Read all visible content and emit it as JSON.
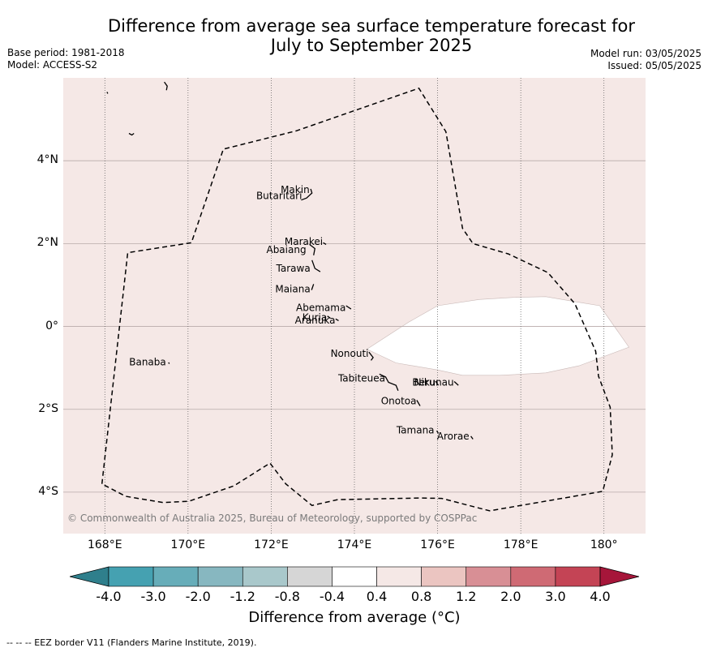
{
  "title_line1": "Difference from average sea surface temperature forecast for",
  "title_line2": "July to September 2025",
  "base_period": "Base period: 1981-2018",
  "model": "Model: ACCESS-S2",
  "model_run": "Model run: 03/05/2025",
  "issued": "Issued: 05/05/2025",
  "copyright": "© Commonwealth of Australia 2025, Bureau of Meteorology, supported by COSPPac",
  "footnote": "--  --  -- EEZ border V11 (Flanders Marine Institute, 2019).",
  "colorbar_label": "Difference from average (°C)",
  "colorbar_ticks": [
    "-4.0",
    "-3.0",
    "-2.0",
    "-1.2",
    "-0.8",
    "-0.4",
    "0.4",
    "0.8",
    "1.2",
    "2.0",
    "3.0",
    "4.0"
  ],
  "colorbar_colors": [
    "#2f7f8c",
    "#45a1b1",
    "#67adb9",
    "#87b7c0",
    "#a9c8cb",
    "#d6d6d6",
    "#ffffff",
    "#f5e8e6",
    "#ebc5c1",
    "#d88f95",
    "#cf6a74",
    "#c44455",
    "#a6163a"
  ],
  "map": {
    "background_color": "#f5e8e6",
    "lon_range": [
      167,
      181
    ],
    "lat_range": [
      -5,
      6
    ],
    "lon_ticks": [
      {
        "value": 168,
        "label": "168°E"
      },
      {
        "value": 170,
        "label": "170°E"
      },
      {
        "value": 172,
        "label": "172°E"
      },
      {
        "value": 174,
        "label": "174°E"
      },
      {
        "value": 176,
        "label": "176°E"
      },
      {
        "value": 178,
        "label": "178°E"
      },
      {
        "value": 180,
        "label": "180°"
      }
    ],
    "lat_ticks": [
      {
        "value": 4,
        "label": "4°N"
      },
      {
        "value": 2,
        "label": "2°N"
      },
      {
        "value": 0,
        "label": "0°"
      },
      {
        "value": -2,
        "label": "2°S"
      },
      {
        "value": -4,
        "label": "4°S"
      }
    ],
    "anomaly_regions": [
      {
        "category": "-0.4 to 0.4",
        "color": "#ffffff",
        "outline": [
          [
            174.3,
            -0.55
          ],
          [
            175.3,
            0.1
          ],
          [
            176,
            0.5
          ],
          [
            177,
            0.65
          ],
          [
            177.8,
            0.7
          ],
          [
            178.6,
            0.72
          ],
          [
            179.3,
            0.6
          ],
          [
            179.9,
            0.5
          ],
          [
            180.6,
            -0.5
          ],
          [
            179.4,
            -0.95
          ],
          [
            178.6,
            -1.12
          ],
          [
            177.5,
            -1.18
          ],
          [
            176.6,
            -1.18
          ],
          [
            176,
            -1.05
          ],
          [
            175,
            -0.88
          ]
        ]
      }
    ],
    "eez_border": [
      [
        167.93,
        -3.8
      ],
      [
        168.55,
        1.78
      ],
      [
        170.08,
        2.02
      ],
      [
        170.85,
        4.28
      ],
      [
        172.6,
        4.72
      ],
      [
        175.55,
        5.75
      ],
      [
        176.2,
        4.7
      ],
      [
        176.6,
        2.37
      ],
      [
        176.85,
        2.0
      ],
      [
        177.7,
        1.75
      ],
      [
        178.65,
        1.3
      ],
      [
        179.3,
        0.55
      ],
      [
        179.8,
        -0.6
      ],
      [
        179.87,
        -1.2
      ],
      [
        180.15,
        -1.95
      ],
      [
        180.2,
        -3.1
      ],
      [
        179.97,
        -3.98
      ],
      [
        177.25,
        -4.45
      ],
      [
        176.1,
        -4.15
      ],
      [
        175.6,
        -4.14
      ],
      [
        173.6,
        -4.18
      ],
      [
        172.98,
        -4.32
      ],
      [
        172.35,
        -3.8
      ],
      [
        171.97,
        -3.3
      ],
      [
        171.1,
        -3.85
      ],
      [
        170.02,
        -4.22
      ],
      [
        169.4,
        -4.25
      ],
      [
        168.5,
        -4.1
      ],
      [
        167.93,
        -3.8
      ]
    ],
    "places": [
      {
        "name": "Makin",
        "lon": 172.98,
        "lat": 3.3
      },
      {
        "name": "Butaritari",
        "lon": 172.8,
        "lat": 3.15
      },
      {
        "name": "Marakei",
        "lon": 173.3,
        "lat": 2.05
      },
      {
        "name": "Abaiang",
        "lon": 172.9,
        "lat": 1.85
      },
      {
        "name": "Tarawa",
        "lon": 173.0,
        "lat": 1.4
      },
      {
        "name": "Maiana",
        "lon": 173.0,
        "lat": 0.9
      },
      {
        "name": "Abemama",
        "lon": 173.85,
        "lat": 0.45
      },
      {
        "name": "Kuria",
        "lon": 173.4,
        "lat": 0.22
      },
      {
        "name": "Aranuka",
        "lon": 173.6,
        "lat": 0.15
      },
      {
        "name": "Nonouti",
        "lon": 174.4,
        "lat": -0.65
      },
      {
        "name": "Banaba",
        "lon": 169.53,
        "lat": -0.86
      },
      {
        "name": "Tabiteuea",
        "lon": 174.8,
        "lat": -1.25
      },
      {
        "name": "Beru",
        "lon": 176.0,
        "lat": -1.35
      },
      {
        "name": "Nikunau",
        "lon": 176.45,
        "lat": -1.35
      },
      {
        "name": "Onotoa",
        "lon": 175.55,
        "lat": -1.8
      },
      {
        "name": "Tamana",
        "lon": 175.98,
        "lat": -2.5
      },
      {
        "name": "Arorae",
        "lon": 176.82,
        "lat": -2.65
      }
    ]
  }
}
